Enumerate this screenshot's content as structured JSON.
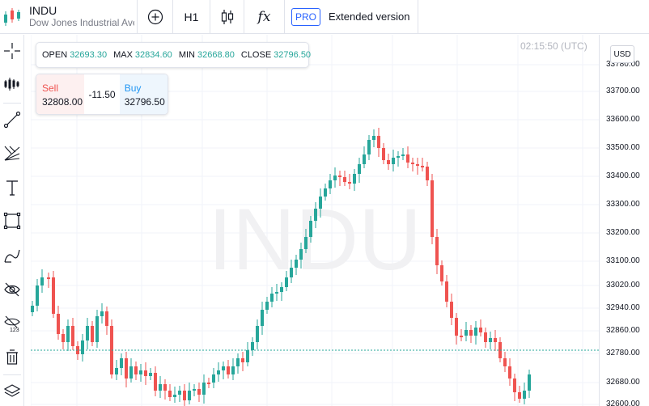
{
  "symbol": {
    "ticker": "INDU",
    "name": "Dow Jones Industrial Average"
  },
  "toolbar": {
    "timeframe": "H1",
    "indicators_glyph": "fx",
    "pro_badge": "PRO",
    "pro_label": "Extended version"
  },
  "left_tools": [
    "crosshair-icon",
    "bars-icon",
    "trend-line-icon",
    "fib-fan-icon",
    "text-icon",
    "rectangle-icon",
    "brush-icon",
    "hide-drawings-icon",
    "hide-indicators-icon",
    "trash-icon",
    "layers-icon"
  ],
  "clock": "02:15:50 (UTC)",
  "currency": "USD",
  "ohlc": {
    "open_label": "OPEN",
    "open": "32693.30",
    "max_label": "MAX",
    "max": "32834.60",
    "min_label": "MIN",
    "min": "32668.80",
    "close_label": "CLOSE",
    "close": "32796.50"
  },
  "trade": {
    "sell_label": "Sell",
    "sell": "32808.00",
    "spread": "-11.50",
    "buy_label": "Buy",
    "buy": "32796.50"
  },
  "watermark": "INDU",
  "colors": {
    "up": "#26a69a",
    "down": "#ef5350",
    "accent": "#2962ff"
  },
  "chart_data": {
    "type": "candlestick",
    "title": "INDU",
    "y_ticks": [
      "33780.00",
      "33700.00",
      "33600.00",
      "33500.00",
      "33400.00",
      "33300.00",
      "33200.00",
      "33100.00",
      "33020.00",
      "32940.00",
      "32860.00",
      "32780.00",
      "32680.00",
      "32600.00"
    ],
    "y_axis_side": "right",
    "grid": true,
    "last_price_line": 32796.5
  }
}
